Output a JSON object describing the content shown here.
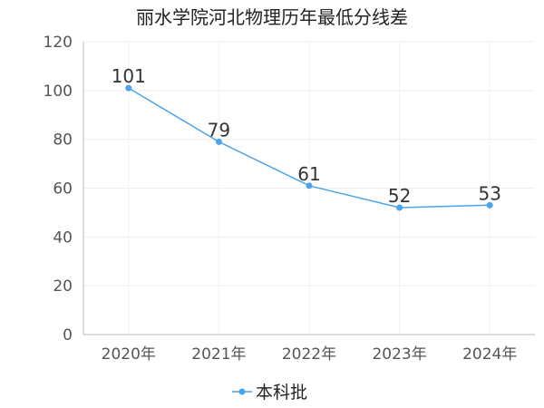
{
  "chart_data": {
    "type": "line",
    "title": "丽水学院河北物理历年最低分线差",
    "xlabel": "",
    "ylabel": "",
    "categories": [
      "2020年",
      "2021年",
      "2022年",
      "2023年",
      "2024年"
    ],
    "series": [
      {
        "name": "本科批",
        "values": [
          101,
          79,
          61,
          52,
          53
        ],
        "color": "#4ba3ec"
      }
    ],
    "ylim": [
      0,
      120
    ],
    "yticks": [
      "0",
      "20",
      "40",
      "60",
      "80",
      "100",
      "120"
    ],
    "grid": true,
    "legend_position": "bottom-center"
  }
}
